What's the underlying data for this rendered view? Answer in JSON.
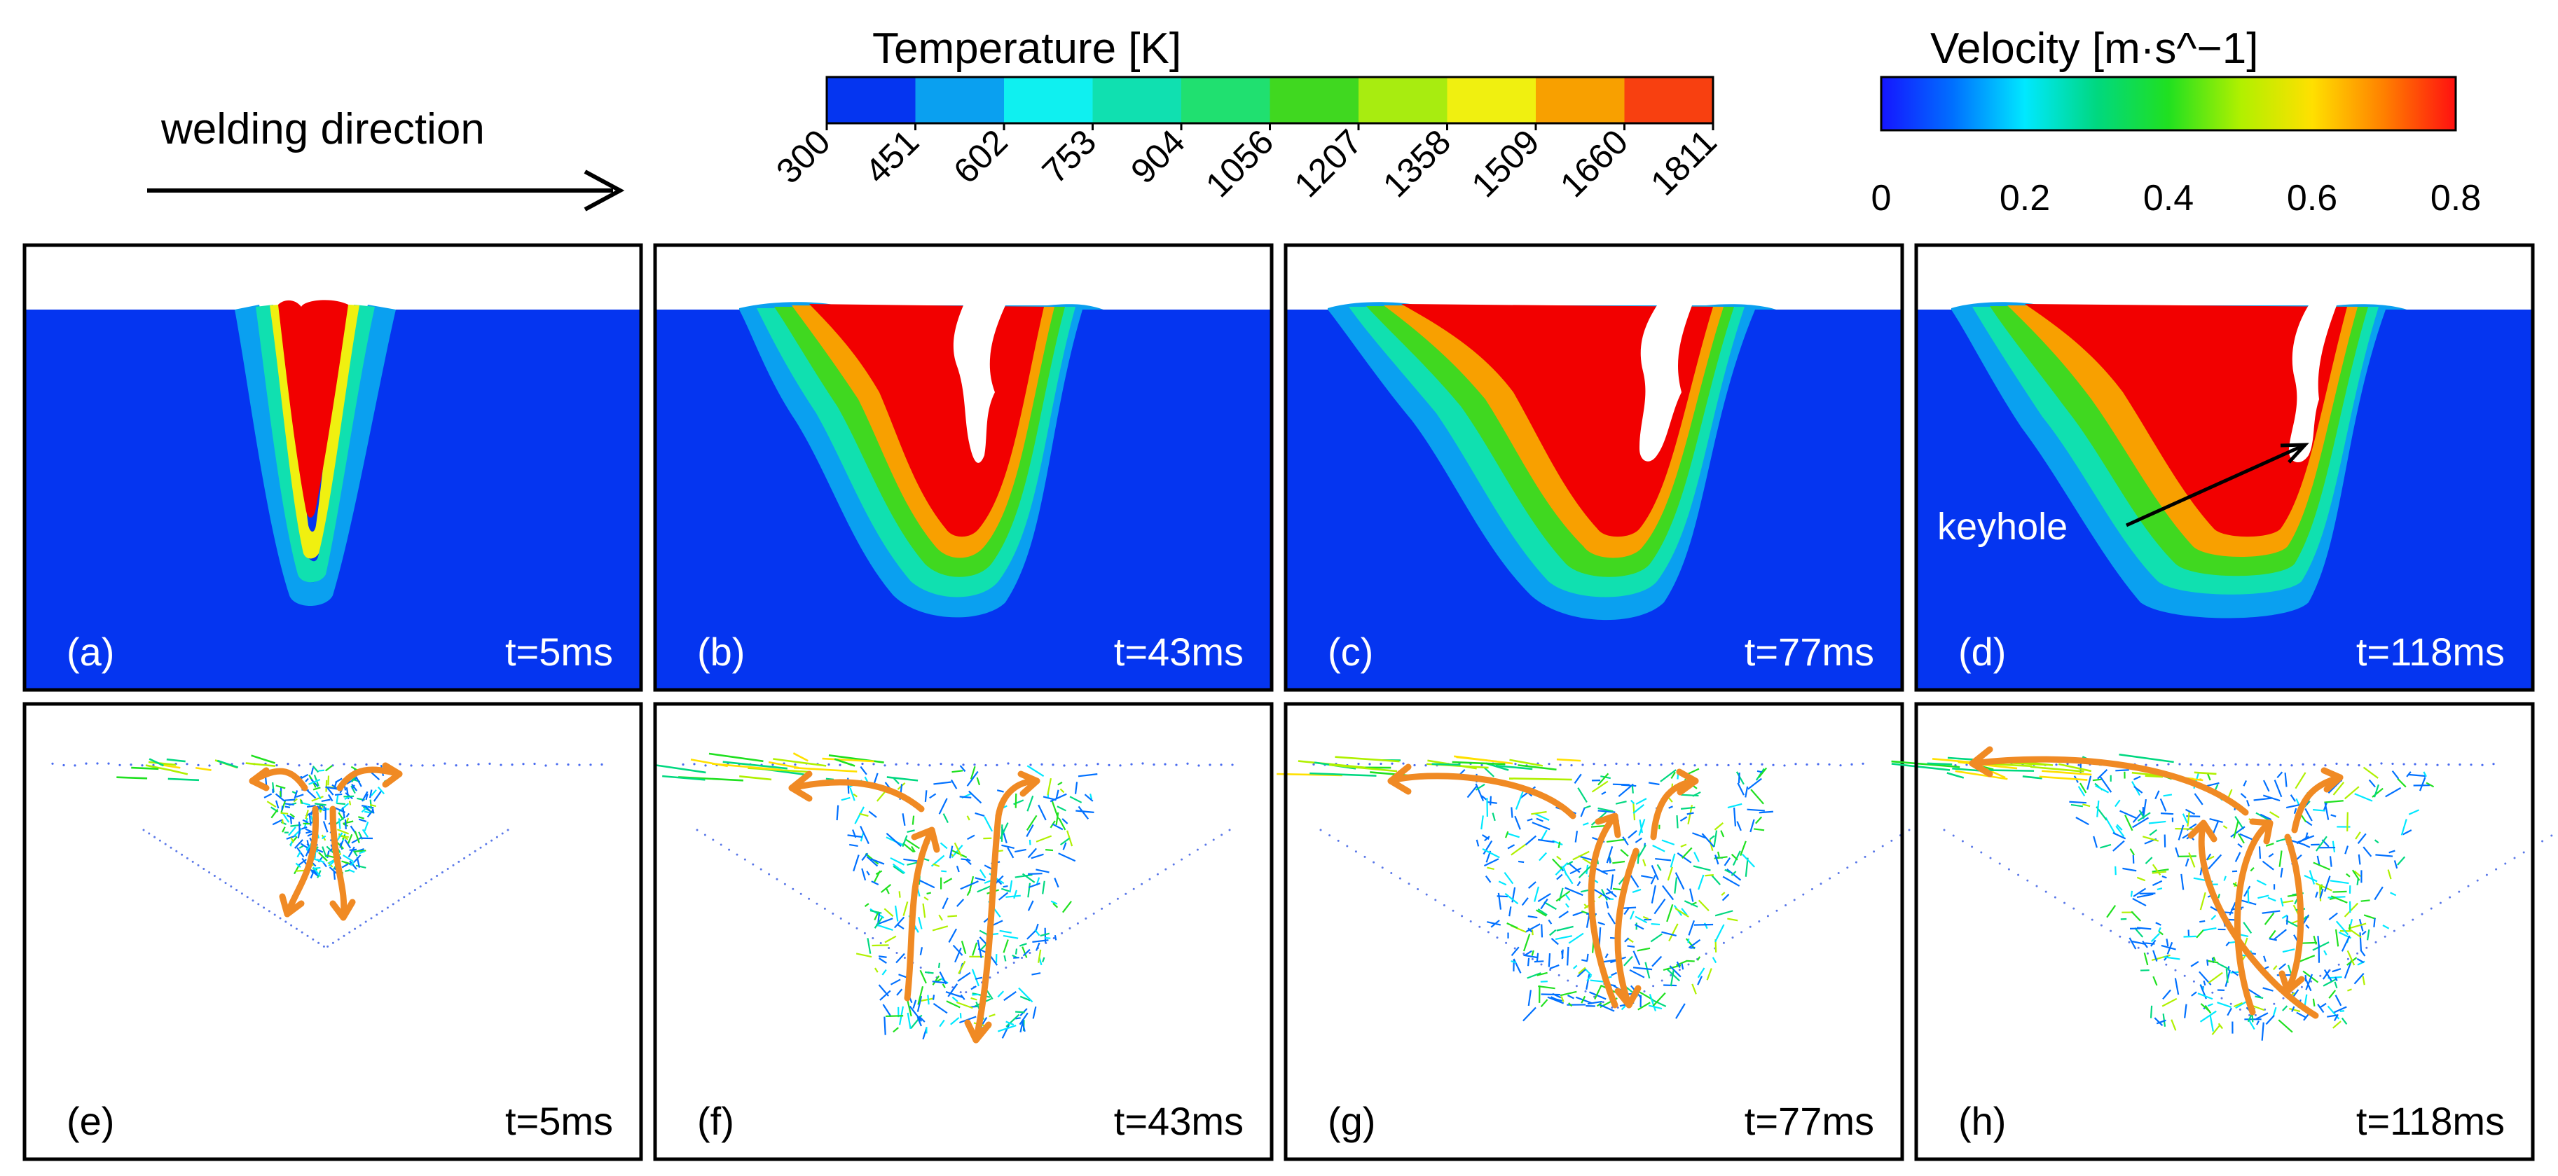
{
  "header": {
    "welding_direction": "welding direction",
    "temperature_title": "Temperature [K]",
    "velocity_title": "Velocity [m·s^−1]"
  },
  "temperature_scale": {
    "ticks": [
      "300",
      "451",
      "602",
      "753",
      "904",
      "1056",
      "1207",
      "1358",
      "1509",
      "1660",
      "1811"
    ],
    "colors": [
      "#0535f0",
      "#0aa0f0",
      "#0ff0f0",
      "#10e0b0",
      "#20e070",
      "#40d820",
      "#a8ec10",
      "#f0f010",
      "#f8a000",
      "#f84010"
    ]
  },
  "velocity_scale": {
    "ticks": [
      "0",
      "0.2",
      "0.4",
      "0.6",
      "0.8"
    ],
    "colors": [
      "#1515ff",
      "#0070ff",
      "#00e8ff",
      "#00d880",
      "#20e020",
      "#b0f000",
      "#ffe000",
      "#ff8000",
      "#ff1010"
    ]
  },
  "colors": {
    "background_blue": "#0535f0",
    "melt_red": "#f20000",
    "arrow_orange": "#f08a24"
  },
  "annotation": {
    "keyhole": "keyhole"
  },
  "temperature_panels": [
    {
      "label": "(a)",
      "time": "t=5ms"
    },
    {
      "label": "(b)",
      "time": "t=43ms"
    },
    {
      "label": "(c)",
      "time": "t=77ms"
    },
    {
      "label": "(d)",
      "time": "t=118ms"
    }
  ],
  "velocity_panels": [
    {
      "label": "(e)",
      "time": "t=5ms"
    },
    {
      "label": "(f)",
      "time": "t=43ms"
    },
    {
      "label": "(g)",
      "time": "t=77ms"
    },
    {
      "label": "(h)",
      "time": "t=118ms"
    }
  ]
}
